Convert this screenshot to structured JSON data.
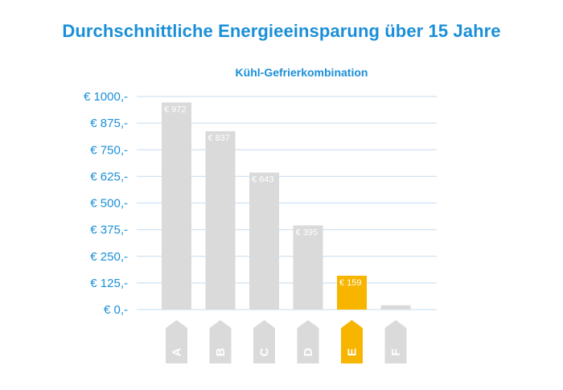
{
  "colors": {
    "accent": "#1a8fd8",
    "bar": "#dadada",
    "highlight": "#f7b500",
    "grid": "#cfe3f3"
  },
  "chart_data": {
    "type": "bar",
    "title": "Durchschnittliche Energieeinsparung über 15 Jahre",
    "subtitle": "Kühl-Gefrierkombination",
    "xlabel": "",
    "ylabel": "",
    "ylim": [
      0,
      1000
    ],
    "yticks": [
      0,
      125,
      250,
      375,
      500,
      625,
      750,
      875,
      1000
    ],
    "ytick_labels": [
      "€ 0,-",
      "€ 125,-",
      "€ 250,-",
      "€ 375,-",
      "€ 500,-",
      "€ 625,-",
      "€ 750,-",
      "€ 875,-",
      "€ 1000,-"
    ],
    "categories": [
      "A",
      "B",
      "C",
      "D",
      "E",
      "F"
    ],
    "values": [
      972,
      837,
      643,
      395,
      159,
      20
    ],
    "data_labels": [
      "€ 972",
      "€ 837",
      "€ 643",
      "€ 395",
      "€ 159",
      ""
    ],
    "highlight_category": "E",
    "grid": true
  }
}
